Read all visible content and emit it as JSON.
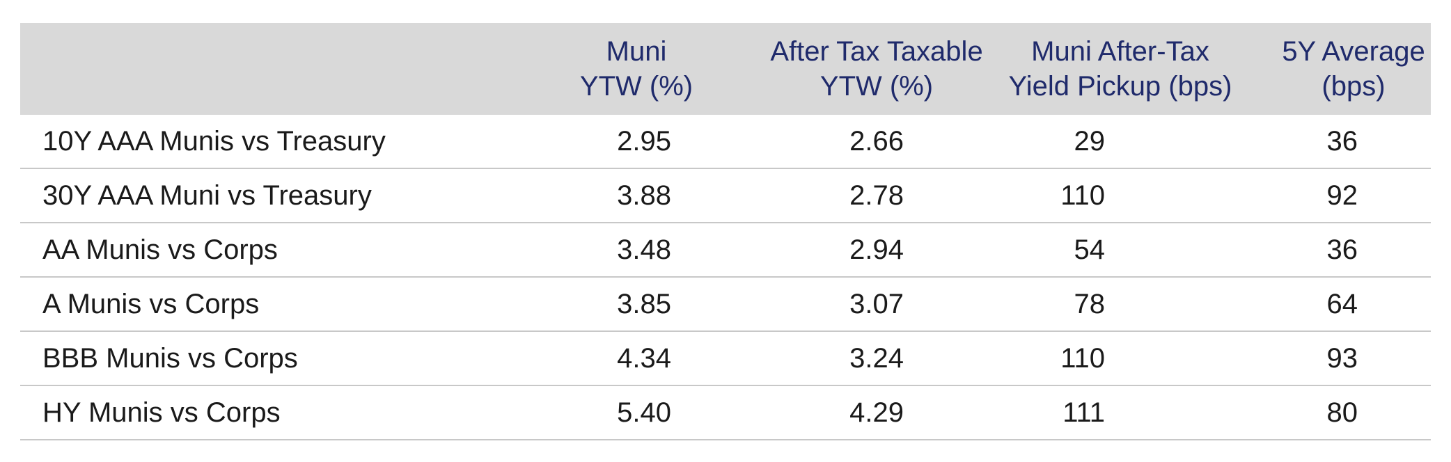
{
  "table": {
    "headers": {
      "label": "",
      "muni_ytw": [
        "Muni",
        "YTW (%)"
      ],
      "after_tax": [
        "After Tax Taxable",
        "YTW (%)"
      ],
      "pickup": [
        "Muni After-Tax",
        "Yield Pickup (bps)"
      ],
      "avg": [
        "5Y Average",
        "(bps)"
      ]
    },
    "rows": [
      {
        "label": "10Y AAA Munis vs Treasury",
        "muni_ytw": "2.95",
        "after_tax": "2.66",
        "pickup": "29",
        "avg": "36"
      },
      {
        "label": "30Y AAA Muni vs Treasury",
        "muni_ytw": "3.88",
        "after_tax": "2.78",
        "pickup": "110",
        "avg": "92"
      },
      {
        "label": "AA Munis vs Corps",
        "muni_ytw": "3.48",
        "after_tax": "2.94",
        "pickup": "54",
        "avg": "36"
      },
      {
        "label": "A Munis vs Corps",
        "muni_ytw": "3.85",
        "after_tax": "3.07",
        "pickup": "78",
        "avg": "64"
      },
      {
        "label": "BBB Munis vs Corps",
        "muni_ytw": "4.34",
        "after_tax": "3.24",
        "pickup": "110",
        "avg": "93"
      },
      {
        "label": "HY Munis vs Corps",
        "muni_ytw": "5.40",
        "after_tax": "4.29",
        "pickup": "111",
        "avg": "80"
      }
    ]
  },
  "colors": {
    "header_bg": "#d9d9d9",
    "header_text": "#1f2a6b",
    "body_text": "#1a1a1a",
    "row_divider": "#c8c8c8"
  }
}
